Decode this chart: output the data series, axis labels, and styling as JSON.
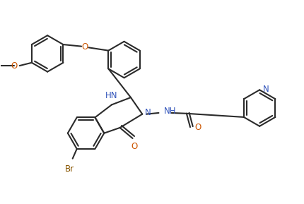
{
  "background_color": "#ffffff",
  "line_color": "#2b2b2b",
  "label_color_N": "#3355bb",
  "label_color_O": "#cc5500",
  "label_color_Br": "#885500",
  "figsize": [
    4.3,
    2.89
  ],
  "dpi": 100,
  "xlim": [
    0,
    10
  ],
  "ylim": [
    0,
    6.7
  ],
  "ring_r": 0.6,
  "lw": 1.5,
  "doff": 0.09
}
